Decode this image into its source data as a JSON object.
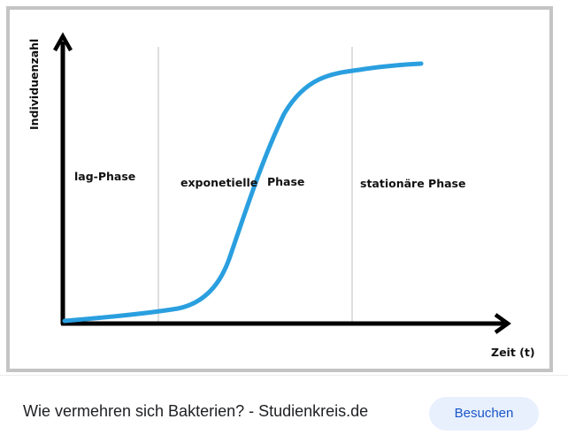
{
  "preview": {
    "y_axis_label": "Individuenzahl",
    "x_axis_label": "Zeit (t)",
    "phases": [
      "lag-Phase",
      "exponetielle",
      "Phase",
      "stationäre Phase"
    ],
    "curve_color": "#2a9fdf"
  },
  "footer": {
    "caption": "Wie vermehren sich Bakterien? - Studienkreis.de",
    "visit_button_label": "Besuchen"
  },
  "colors": {
    "button_bg": "#e8f0fe",
    "button_text": "#1a56c7",
    "frame_border": "#c4c4c4"
  }
}
